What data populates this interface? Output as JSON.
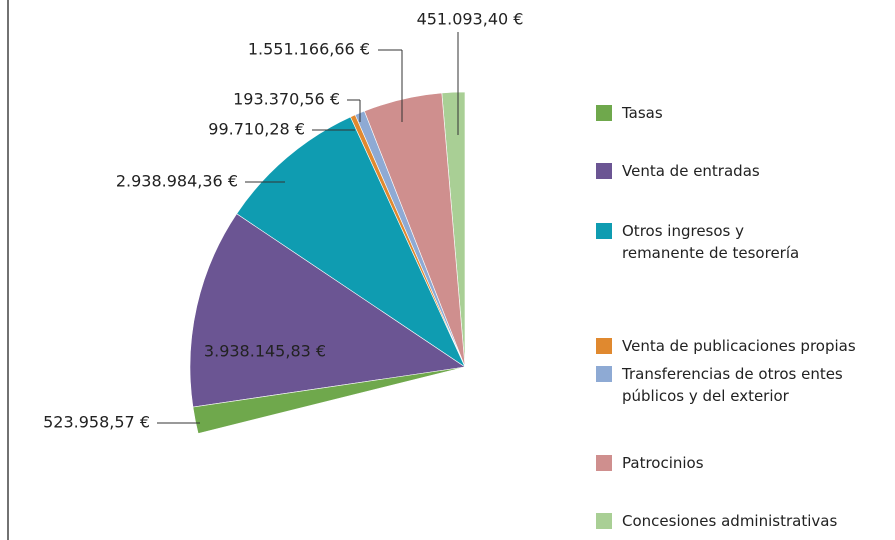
{
  "chart_data": {
    "type": "pie",
    "categories": [
      "Tasas",
      "Venta de entradas",
      "Otros ingresos y\nremanente de tesorería",
      "Venta de publicaciones propias",
      "Transferencias de otros entes\n públicos y del exterior",
      "Patrocinios",
      "Concesiones administrativas"
    ],
    "values": [
      523958.57,
      3938145.83,
      2938984.36,
      99710.28,
      193370.56,
      1551166.66,
      451093.4
    ],
    "value_labels": [
      "523.958,57 €",
      "3.938.145,83 €",
      "2.938.984,36 €",
      "99.710,28 €",
      "193.370,56 €",
      "1.551.166,66 €",
      "451.093,40 €"
    ],
    "colors": [
      "#6fa84c",
      "#6b5593",
      "#0f9cb1",
      "#e0892f",
      "#8eaad4",
      "#cf8f8e",
      "#a9cf95"
    ]
  }
}
